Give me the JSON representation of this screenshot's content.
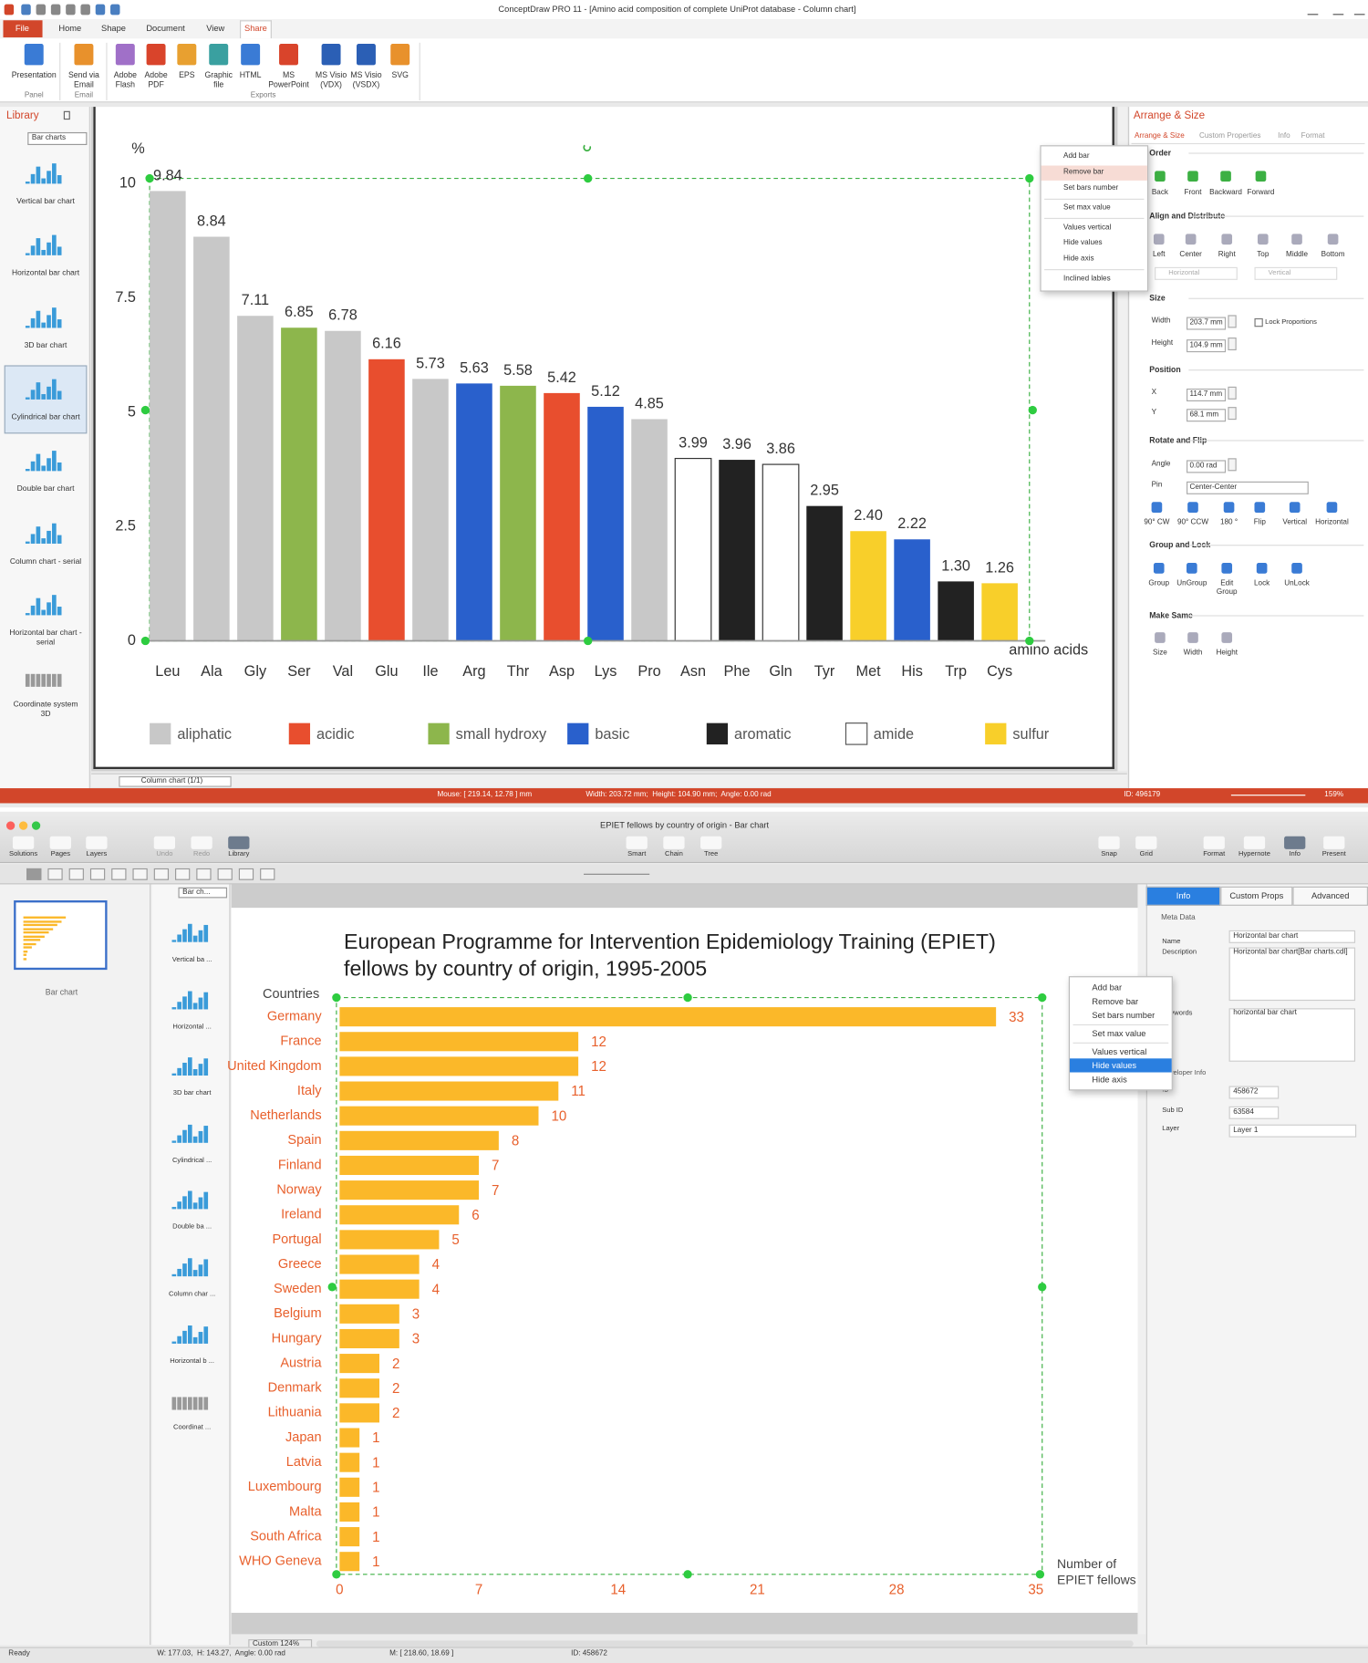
{
  "window1": {
    "title": "ConceptDraw PRO 11 - [Amino acid composition of complete UniProt database - Column chart]",
    "tabs": [
      "File",
      "Home",
      "Shape",
      "Document",
      "View",
      "Share"
    ],
    "ribbon_buttons": [
      "Presentation",
      "Send via\nEmail",
      "Adobe\nFlash",
      "Adobe\nPDF",
      "EPS",
      "Graphic\nfile",
      "HTML",
      "MS\nPowerPoint",
      "MS Visio\n(VDX)",
      "MS Visio\n(VSDX)",
      "SVG"
    ],
    "ribbon_groups": [
      "Panel",
      "Email",
      "Exports"
    ],
    "library": {
      "title": "Library",
      "selector": "Bar charts",
      "items": [
        "Vertical bar chart",
        "Horizontal bar chart",
        "3D bar chart",
        "Cylindrical bar chart",
        "Double bar chart",
        "Column chart - serial",
        "Horizontal bar chart -\nserial",
        "Coordinate system\n3D"
      ]
    },
    "page_tab": "Column chart (1/1)",
    "context_menu": [
      "Add bar",
      "Remove bar",
      "Set bars number",
      "Set max value",
      "Values vertical",
      "Hide values",
      "Hide axis",
      "Inclined lables"
    ],
    "panel": {
      "title": "Arrange & Size",
      "tabs": [
        "Arrange & Size",
        "Custom Properties",
        "Info",
        "Format"
      ],
      "order": {
        "heading": "Order",
        "buttons": [
          "Back",
          "Front",
          "Backward",
          "Forward"
        ]
      },
      "align": {
        "heading": "Align and Distribute",
        "buttons": [
          "Left",
          "Center",
          "Right",
          "Top",
          "Middle",
          "Bottom"
        ],
        "selects": [
          "Horizontal",
          "Vertical"
        ]
      },
      "size": {
        "heading": "Size",
        "fields": [
          {
            "label": "Width",
            "value": "203.7 mm"
          },
          {
            "label": "Height",
            "value": "104.9 mm"
          }
        ],
        "checkbox": "Lock Proportions"
      },
      "position": {
        "heading": "Position",
        "fields": [
          {
            "label": "X",
            "value": "114.7 mm"
          },
          {
            "label": "Y",
            "value": "68.1 mm"
          }
        ]
      },
      "rotate": {
        "heading": "Rotate and Flip",
        "fields": [
          {
            "label": "Angle",
            "value": "0.00 rad"
          },
          {
            "label": "Pin",
            "value": "Center-Center"
          }
        ],
        "buttons": [
          "90° CW",
          "90° CCW",
          "180 °",
          "Flip",
          "Vertical",
          "Horizontal"
        ]
      },
      "group": {
        "heading": "Group and Lock",
        "buttons": [
          "Group",
          "UnGroup",
          "Edit\nGroup",
          "Lock",
          "UnLock"
        ]
      },
      "same": {
        "heading": "Make Same",
        "buttons": [
          "Size",
          "Width",
          "Height"
        ]
      }
    },
    "status": [
      "Mouse: [ 219.14, 12.78 ] mm",
      "Width: 203.72 mm;  Height: 104.90 mm;  Angle: 0.00 rad",
      "ID: 496179",
      "159%"
    ]
  },
  "window2": {
    "title": "EPIET fellows by country of origin - Bar chart",
    "toolbar": [
      "Solutions",
      "Pages",
      "Layers",
      "Undo",
      "Redo",
      "Library",
      "Smart",
      "Chain",
      "Tree",
      "Snap",
      "Grid",
      "Format",
      "Hypernote",
      "Info",
      "Present"
    ],
    "pages": [
      "Bar chart"
    ],
    "library": {
      "selector": "Bar ch...",
      "items": [
        "Vertical ba ...",
        "Horizontal ...",
        "3D bar chart",
        "Cylindrical ...",
        "Double ba ...",
        "Column char ...",
        "Horizontal b ...",
        "Coordinat ..."
      ]
    },
    "zoom": "Custom 124%",
    "context_menu": [
      "Add bar",
      "Remove bar",
      "Set bars number",
      "Set max value",
      "Values vertical",
      "Hide values",
      "Hide axis"
    ],
    "panel": {
      "tabs": [
        "Info",
        "Custom Props",
        "Advanced"
      ],
      "section": "Meta Data",
      "fields": [
        {
          "label": "Name",
          "value": "Horizontal bar chart"
        },
        {
          "label": "Description",
          "value": "Horizontal bar chart[Bar charts.cdl]"
        },
        {
          "label": "Keywords",
          "value": "horizontal bar chart"
        }
      ],
      "section2": "Developer Info",
      "fields2": [
        {
          "label": "ID",
          "value": "458672"
        },
        {
          "label": "Sub ID",
          "value": "63584"
        },
        {
          "label": "Layer",
          "value": "Layer 1"
        }
      ]
    },
    "status": [
      "Ready",
      "W: 177.03,  H: 143.27,  Angle: 0.00 rad",
      "M: [ 218.60, 18.69 ]",
      "ID: 458672"
    ]
  },
  "chart_data": [
    {
      "type": "bar",
      "y_label": "%",
      "x_label": "amino acids",
      "categories": [
        "Leu",
        "Ala",
        "Gly",
        "Ser",
        "Val",
        "Glu",
        "Ile",
        "Arg",
        "Thr",
        "Asp",
        "Lys",
        "Pro",
        "Asn",
        "Phe",
        "Gln",
        "Tyr",
        "Met",
        "His",
        "Trp",
        "Cys"
      ],
      "values": [
        9.84,
        8.84,
        7.11,
        6.85,
        6.78,
        6.16,
        5.73,
        5.63,
        5.58,
        5.42,
        5.12,
        4.85,
        3.99,
        3.96,
        3.86,
        2.95,
        2.4,
        2.22,
        1.3,
        1.26
      ],
      "value_labels": [
        "9.84",
        "8.84",
        "7.11",
        "6.85",
        "6.78",
        "6.16",
        "5.73",
        "5.63",
        "5.58",
        "5.42",
        "5.12",
        "4.85",
        "3.99",
        "3.96",
        "3.86",
        "2.95",
        "2.40",
        "2.22",
        "1.30",
        "1.26"
      ],
      "colors": [
        "#c8c8c8",
        "#c8c8c8",
        "#c8c8c8",
        "#8db64c",
        "#c8c8c8",
        "#e84e2e",
        "#c8c8c8",
        "#2960cc",
        "#8db64c",
        "#e84e2e",
        "#2960cc",
        "#c8c8c8",
        "#ffffff",
        "#222222",
        "#ffffff",
        "#222222",
        "#f8cf2a",
        "#2960cc",
        "#222222",
        "#f8cf2a"
      ],
      "legend": [
        {
          "name": "aliphatic",
          "color": "#c8c8c8"
        },
        {
          "name": "acidic",
          "color": "#e84e2e"
        },
        {
          "name": "small hydroxy",
          "color": "#8db64c"
        },
        {
          "name": "basic",
          "color": "#2960cc"
        },
        {
          "name": "aromatic",
          "color": "#222222"
        },
        {
          "name": "amide",
          "color": "#ffffff"
        },
        {
          "name": "sulfur",
          "color": "#f8cf2a"
        }
      ],
      "ylim": [
        0,
        10
      ],
      "yticks": [
        0,
        2.5,
        5,
        7.5,
        10
      ],
      "grid": false
    },
    {
      "type": "horizontal_bar",
      "title": [
        "European Programme for Intervention Epidemiology Training (EPIET)",
        "fellows by country of origin, 1995-2005"
      ],
      "y_label": "Countries",
      "x_label": [
        "Number of",
        "EPIET fellows"
      ],
      "categories": [
        "Germany",
        "France",
        "United Kingdom",
        "Italy",
        "Netherlands",
        "Spain",
        "Finland",
        "Norway",
        "Ireland",
        "Portugal",
        "Greece",
        "Sweden",
        "Belgium",
        "Hungary",
        "Austria",
        "Denmark",
        "Lithuania",
        "Japan",
        "Latvia",
        "Luxembourg",
        "Malta",
        "South Africa",
        "WHO Geneva"
      ],
      "values": [
        33,
        12,
        12,
        11,
        10,
        8,
        7,
        7,
        6,
        5,
        4,
        4,
        3,
        3,
        2,
        2,
        2,
        1,
        1,
        1,
        1,
        1,
        1
      ],
      "color": "#fbb829",
      "label_color": "#e8602c",
      "xlim": [
        0,
        35
      ],
      "xticks": [
        0,
        7,
        14,
        21,
        28,
        35
      ],
      "grid": false
    }
  ]
}
